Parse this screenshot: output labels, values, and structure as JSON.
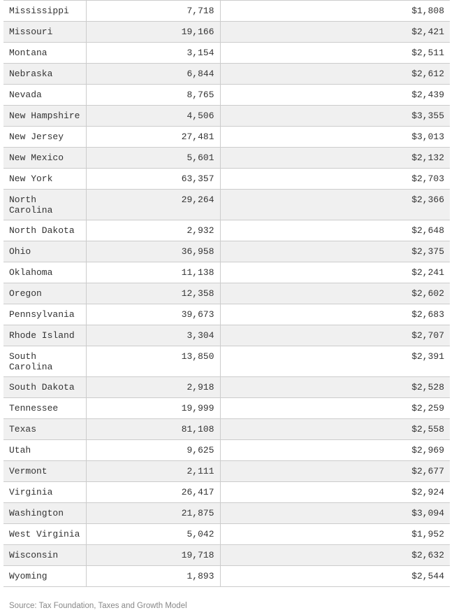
{
  "rows": [
    {
      "state": "Mississippi",
      "value": "7,718",
      "cost": "$1,808"
    },
    {
      "state": "Missouri",
      "value": "19,166",
      "cost": "$2,421"
    },
    {
      "state": "Montana",
      "value": "3,154",
      "cost": "$2,511"
    },
    {
      "state": "Nebraska",
      "value": "6,844",
      "cost": "$2,612"
    },
    {
      "state": "Nevada",
      "value": "8,765",
      "cost": "$2,439"
    },
    {
      "state": "New Hampshire",
      "value": "4,506",
      "cost": "$3,355"
    },
    {
      "state": "New Jersey",
      "value": "27,481",
      "cost": "$3,013"
    },
    {
      "state": "New Mexico",
      "value": "5,601",
      "cost": "$2,132"
    },
    {
      "state": "New York",
      "value": "63,357",
      "cost": "$2,703"
    },
    {
      "state": "North Carolina",
      "value": "29,264",
      "cost": "$2,366"
    },
    {
      "state": "North Dakota",
      "value": "2,932",
      "cost": "$2,648"
    },
    {
      "state": "Ohio",
      "value": "36,958",
      "cost": "$2,375"
    },
    {
      "state": "Oklahoma",
      "value": "11,138",
      "cost": "$2,241"
    },
    {
      "state": "Oregon",
      "value": "12,358",
      "cost": "$2,602"
    },
    {
      "state": "Pennsylvania",
      "value": "39,673",
      "cost": "$2,683"
    },
    {
      "state": "Rhode Island",
      "value": "3,304",
      "cost": "$2,707"
    },
    {
      "state": "South Carolina",
      "value": "13,850",
      "cost": "$2,391"
    },
    {
      "state": "South Dakota",
      "value": "2,918",
      "cost": "$2,528"
    },
    {
      "state": "Tennessee",
      "value": "19,999",
      "cost": "$2,259"
    },
    {
      "state": "Texas",
      "value": "81,108",
      "cost": "$2,558"
    },
    {
      "state": "Utah",
      "value": "9,625",
      "cost": "$2,969"
    },
    {
      "state": "Vermont",
      "value": "2,111",
      "cost": "$2,677"
    },
    {
      "state": "Virginia",
      "value": "26,417",
      "cost": "$2,924"
    },
    {
      "state": "Washington",
      "value": "21,875",
      "cost": "$3,094"
    },
    {
      "state": "West Virginia",
      "value": "5,042",
      "cost": "$1,952"
    },
    {
      "state": "Wisconsin",
      "value": "19,718",
      "cost": "$2,632"
    },
    {
      "state": "Wyoming",
      "value": "1,893",
      "cost": "$2,544"
    }
  ],
  "source": "Source: Tax Foundation, Taxes and Growth Model"
}
